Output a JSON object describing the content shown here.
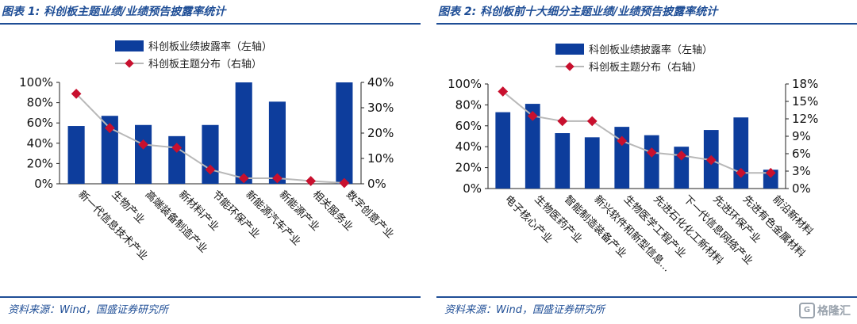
{
  "panel1": {
    "title": "图表 1:  科创板主题业绩/业绩预告披露率统计",
    "source": "资料来源：Wind，国盛证券研究所"
  },
  "panel2": {
    "title": "图表 2:  科创板前十大细分主题业绩/业绩预告披露率统计",
    "source": "资料来源：Wind，国盛证券研究所"
  },
  "watermark": {
    "text": "格隆汇",
    "logo": "G"
  },
  "colors": {
    "bar": "#0d3d9c",
    "line": "#b8b8b8",
    "marker": "#c8102e",
    "axis": "#222222",
    "title": "#1f4e96"
  },
  "chart_data": [
    {
      "type": "bar",
      "categories": [
        "新一代信息技术产业",
        "生物产业",
        "高端装备制造产业",
        "新材料产业",
        "节能环保产业",
        "新能源汽车产业",
        "新能源产业",
        "相关服务业",
        "数字创意产业"
      ],
      "series": [
        {
          "name": "科创板业绩披露率（左轴）",
          "type": "bar",
          "axis": "left",
          "values": [
            57,
            67,
            58,
            47,
            58,
            100,
            81,
            0,
            100
          ]
        },
        {
          "name": "科创板主题分布（右轴）",
          "type": "line",
          "axis": "right",
          "values": [
            35.5,
            22,
            15.5,
            14.2,
            5.6,
            2.2,
            2.2,
            1.1,
            0.3
          ]
        }
      ],
      "y_left": {
        "min": 0,
        "max": 100,
        "ticks": [
          "0%",
          "20%",
          "40%",
          "60%",
          "80%",
          "100%"
        ]
      },
      "y_right": {
        "min": 0,
        "max": 40,
        "ticks": [
          "0%",
          "10%",
          "20%",
          "30%",
          "40%"
        ]
      },
      "legend_position": "top-center"
    },
    {
      "type": "bar",
      "categories": [
        "电子核心产业",
        "生物医药产业",
        "智能制造装备产业",
        "新兴软件和新型信息...",
        "生物医学工程产业",
        "先进石化化工新材料",
        "下一代信息网络产业",
        "先进环保产业",
        "先进有色金属材料",
        "前沿新材料"
      ],
      "series": [
        {
          "name": "科创板业绩披露率（左轴）",
          "type": "bar",
          "axis": "left",
          "values": [
            73,
            81,
            53,
            49,
            59,
            51,
            40,
            56,
            68,
            18
          ]
        },
        {
          "name": "科创板主题分布（右轴）",
          "type": "line",
          "axis": "right",
          "values": [
            16.7,
            12.5,
            11.6,
            11.6,
            8.2,
            6.2,
            5.7,
            4.9,
            2.7,
            2.7
          ]
        }
      ],
      "y_left": {
        "min": 0,
        "max": 100,
        "ticks": [
          "0%",
          "20%",
          "40%",
          "60%",
          "80%",
          "100%"
        ]
      },
      "y_right": {
        "min": 0,
        "max": 18,
        "ticks": [
          "0%",
          "3%",
          "6%",
          "9%",
          "12%",
          "15%",
          "18%"
        ]
      },
      "legend_position": "top-center"
    }
  ]
}
